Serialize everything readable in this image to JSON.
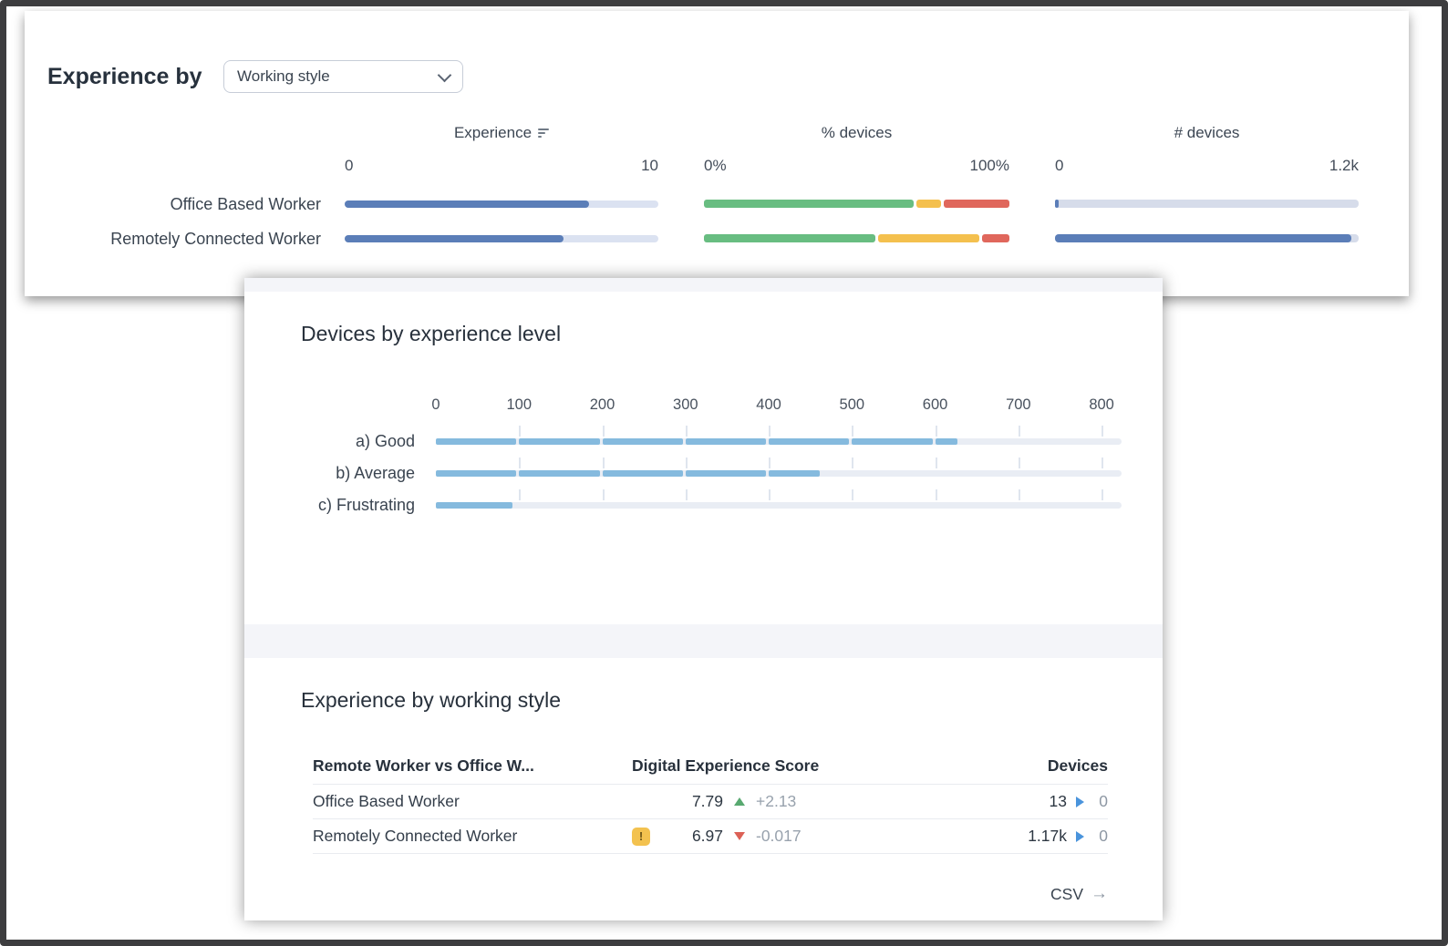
{
  "panel_top": {
    "title": "Experience by",
    "dropdown_value": "Working style",
    "columns": [
      {
        "label": "Experience",
        "min": "0",
        "max": "10"
      },
      {
        "label": "% devices",
        "min": "0%",
        "max": "100%"
      },
      {
        "label": "# devices",
        "min": "0",
        "max": "1.2k"
      }
    ],
    "devices_max": 1200,
    "rows": [
      {
        "label": "Office Based Worker",
        "experience": 7.79,
        "pct": {
          "good": 70,
          "average": 8,
          "frustrating": 22
        },
        "devices": 13
      },
      {
        "label": "Remotely Connected Worker",
        "experience": 6.97,
        "pct": {
          "good": 57,
          "average": 34,
          "frustrating": 9
        },
        "devices": 1170
      }
    ]
  },
  "panel_bottom": {
    "chart_title": "Devices by experience level",
    "xticks": [
      0,
      100,
      200,
      300,
      400,
      500,
      600,
      700,
      800
    ],
    "chart_rows": [
      {
        "label": "a) Good",
        "value": 630
      },
      {
        "label": "b) Average",
        "value": 465
      },
      {
        "label": "c) Frustrating",
        "value": 95
      }
    ],
    "table_title": "Experience by working style",
    "table_headers": [
      "Remote Worker vs Office W...",
      "Digital Experience Score",
      "Devices"
    ],
    "table_rows": [
      {
        "name": "Office Based Worker",
        "warning": false,
        "warning_glyph": "!",
        "score": "7.79",
        "delta": "+2.13",
        "delta_dir": "up",
        "devices": "13",
        "extra": "0"
      },
      {
        "name": "Remotely Connected Worker",
        "warning": true,
        "warning_glyph": "!",
        "score": "6.97",
        "delta": "-0.017",
        "delta_dir": "down",
        "devices": "1.17k",
        "extra": "0"
      }
    ],
    "csv_label": "CSV",
    "csv_arrow": "→"
  },
  "colors": {
    "bar_blue": "#5b7eb8",
    "bar_light_blue": "#85bade",
    "good_green": "#68bd81",
    "avg_yellow": "#f4c04e",
    "bad_red": "#e0675c",
    "delta_up": "#58a970",
    "delta_down": "#dc6156",
    "arrow_blue": "#4a94dc",
    "warning_badge": "#f3c24f"
  },
  "chart_data": [
    {
      "type": "bar",
      "title": "Experience by Working style",
      "categories": [
        "Office Based Worker",
        "Remotely Connected Worker"
      ],
      "series": [
        {
          "name": "Experience",
          "values": [
            7.79,
            6.97
          ],
          "xlim": [
            0,
            10
          ]
        },
        {
          "name": "% devices (good/average/frustrating)",
          "values": [
            [
              70,
              8,
              22
            ],
            [
              57,
              34,
              9
            ]
          ],
          "xlim": [
            0,
            100
          ]
        },
        {
          "name": "# devices",
          "values": [
            13,
            1170
          ],
          "xlim": [
            0,
            1200
          ]
        }
      ],
      "legend_position": "none",
      "grid": false
    },
    {
      "type": "bar",
      "title": "Devices by experience level",
      "categories": [
        "a) Good",
        "b) Average",
        "c) Frustrating"
      ],
      "values": [
        630,
        465,
        95
      ],
      "xlabel": "",
      "ylabel": "",
      "xlim": [
        0,
        800
      ],
      "xticks": [
        0,
        100,
        200,
        300,
        400,
        500,
        600,
        700,
        800
      ],
      "grid": false
    },
    {
      "type": "table",
      "title": "Experience by working style",
      "columns": [
        "Remote Worker vs Office W...",
        "Digital Experience Score",
        "Devices"
      ],
      "rows": [
        [
          "Office Based Worker",
          "7.79",
          "+2.13",
          "13",
          "0"
        ],
        [
          "Remotely Connected Worker",
          "6.97 (warning)",
          "-0.017",
          "1.17k",
          "0"
        ]
      ]
    }
  ]
}
